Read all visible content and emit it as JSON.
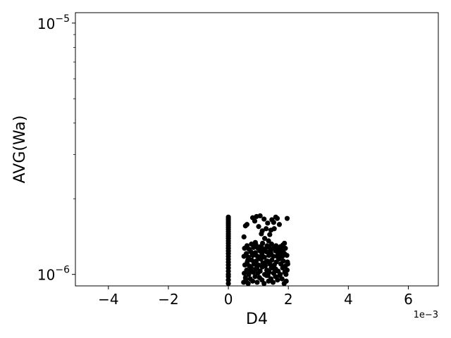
{
  "chart_data": {
    "type": "scatter",
    "title": "",
    "xlabel": "D4",
    "ylabel": "AVG(Wa)",
    "x_offset_label": "1e−3",
    "xlim": [
      -0.0051,
      0.007
    ],
    "ylim": [
      9e-07,
      1.1e-05
    ],
    "yscale": "log",
    "grid": false,
    "marker_color": "#000000",
    "x_ticks": [
      {
        "value": -0.004,
        "label": "−4"
      },
      {
        "value": -0.002,
        "label": "−2"
      },
      {
        "value": 0.0,
        "label": "0"
      },
      {
        "value": 0.002,
        "label": "2"
      },
      {
        "value": 0.004,
        "label": "4"
      },
      {
        "value": 0.006,
        "label": "6"
      }
    ],
    "y_ticks": [
      {
        "value": 1e-06,
        "base": "10",
        "exp": "−6"
      },
      {
        "value": 1e-05,
        "base": "10",
        "exp": "−5"
      }
    ],
    "y_minor_ticks": [
      2e-06,
      3e-06,
      4e-06,
      5e-06,
      6e-06,
      7e-06,
      8e-06,
      9e-06
    ],
    "points": [
      [
        0,
        9.2e-07
      ],
      [
        0,
        9.5e-07
      ],
      [
        0,
        9.8e-07
      ],
      [
        0,
        1e-06
      ],
      [
        0,
        1.03e-06
      ],
      [
        0,
        1.06e-06
      ],
      [
        0,
        1.09e-06
      ],
      [
        0,
        1.12e-06
      ],
      [
        0,
        1.15e-06
      ],
      [
        0,
        1.18e-06
      ],
      [
        0,
        1.21e-06
      ],
      [
        0,
        1.24e-06
      ],
      [
        0,
        1.27e-06
      ],
      [
        0,
        1.3e-06
      ],
      [
        0,
        1.33e-06
      ],
      [
        0,
        1.36e-06
      ],
      [
        0,
        1.39e-06
      ],
      [
        0,
        1.42e-06
      ],
      [
        0,
        1.45e-06
      ],
      [
        0,
        1.48e-06
      ],
      [
        0,
        1.51e-06
      ],
      [
        0,
        1.54e-06
      ],
      [
        0,
        1.57e-06
      ],
      [
        0,
        1.6e-06
      ],
      [
        0,
        1.63e-06
      ],
      [
        0,
        1.66e-06
      ],
      [
        0,
        1.69e-06
      ],
      [
        0.00052,
        1.41e-06
      ],
      [
        0.00057,
        1.56e-06
      ],
      [
        0.00062,
        1.58e-06
      ],
      [
        0.00081,
        1.68e-06
      ],
      [
        0.00088,
        1.63e-06
      ],
      [
        0.00094,
        1.7e-06
      ],
      [
        0.00101,
        1.55e-06
      ],
      [
        0.00106,
        1.71e-06
      ],
      [
        0.00113,
        1.49e-06
      ],
      [
        0.00119,
        1.66e-06
      ],
      [
        0.00126,
        1.52e-06
      ],
      [
        0.00131,
        1.6e-06
      ],
      [
        0.00138,
        1.44e-06
      ],
      [
        0.00145,
        1.65e-06
      ],
      [
        0.00151,
        1.61e-06
      ],
      [
        0.00158,
        1.69e-06
      ],
      [
        0.00163,
        1.67e-06
      ],
      [
        0.0017,
        1.58e-06
      ],
      [
        0.00196,
        1.67e-06
      ],
      [
        0.00121,
        1.39e-06
      ],
      [
        0.00134,
        1.36e-06
      ],
      [
        0.00142,
        1.5e-06
      ],
      [
        0.00187,
        1.33e-06
      ],
      [
        0.0009,
        1.34e-06
      ],
      [
        0.0011,
        1.45e-06
      ],
      [
        0.00153,
        1.52e-06
      ],
      [
        0.00051,
        9.3e-07
      ],
      [
        0.00058,
        9.5e-07
      ],
      [
        0.00066,
        9.2e-07
      ],
      [
        0.00073,
        9.6e-07
      ],
      [
        0.00081,
        9.4e-07
      ],
      [
        0.00089,
        9.8e-07
      ],
      [
        0.00096,
        9.3e-07
      ],
      [
        0.00104,
        9.7e-07
      ],
      [
        0.00112,
        9.5e-07
      ],
      [
        0.00119,
        9.2e-07
      ],
      [
        0.00127,
        9.9e-07
      ],
      [
        0.00134,
        9.4e-07
      ],
      [
        0.00142,
        9.6e-07
      ],
      [
        0.00149,
        9.3e-07
      ],
      [
        0.00157,
        9.8e-07
      ],
      [
        0.00164,
        9.5e-07
      ],
      [
        0.00171,
        9.9e-07
      ],
      [
        0.00179,
        9.6e-07
      ],
      [
        0.00186,
        9.2e-07
      ],
      [
        0.00193,
        9.4e-07
      ],
      [
        0.00053,
        1.01e-06
      ],
      [
        0.00061,
        1.04e-06
      ],
      [
        0.00068,
        1e-06
      ],
      [
        0.00076,
        1.06e-06
      ],
      [
        0.00083,
        1.02e-06
      ],
      [
        0.00091,
        1.05e-06
      ],
      [
        0.00098,
        1.01e-06
      ],
      [
        0.00106,
        1.03e-06
      ],
      [
        0.00113,
        1.07e-06
      ],
      [
        0.00121,
        1e-06
      ],
      [
        0.00128,
        1.04e-06
      ],
      [
        0.00136,
        1.02e-06
      ],
      [
        0.00143,
        1.06e-06
      ],
      [
        0.00151,
        1.01e-06
      ],
      [
        0.00158,
        1.05e-06
      ],
      [
        0.00166,
        1.03e-06
      ],
      [
        0.00173,
        1e-06
      ],
      [
        0.00181,
        1.06e-06
      ],
      [
        0.00188,
        1.02e-06
      ],
      [
        0.00196,
        1.04e-06
      ],
      [
        0.00055,
        1.09e-06
      ],
      [
        0.00063,
        1.12e-06
      ],
      [
        0.0007,
        1.08e-06
      ],
      [
        0.00078,
        1.14e-06
      ],
      [
        0.00085,
        1.1e-06
      ],
      [
        0.00093,
        1.13e-06
      ],
      [
        0.001,
        1.09e-06
      ],
      [
        0.00108,
        1.15e-06
      ],
      [
        0.00115,
        1.11e-06
      ],
      [
        0.00123,
        1.08e-06
      ],
      [
        0.0013,
        1.13e-06
      ],
      [
        0.00138,
        1.1e-06
      ],
      [
        0.00145,
        1.14e-06
      ],
      [
        0.00153,
        1.09e-06
      ],
      [
        0.0016,
        1.12e-06
      ],
      [
        0.00168,
        1.15e-06
      ],
      [
        0.00175,
        1.1e-06
      ],
      [
        0.00183,
        1.13e-06
      ],
      [
        0.0019,
        1.08e-06
      ],
      [
        0.00197,
        1.12e-06
      ],
      [
        0.00052,
        1.18e-06
      ],
      [
        0.0006,
        1.21e-06
      ],
      [
        0.00067,
        1.17e-06
      ],
      [
        0.00075,
        1.23e-06
      ],
      [
        0.00082,
        1.19e-06
      ],
      [
        0.0009,
        1.22e-06
      ],
      [
        0.00097,
        1.18e-06
      ],
      [
        0.00105,
        1.24e-06
      ],
      [
        0.00112,
        1.2e-06
      ],
      [
        0.0012,
        1.17e-06
      ],
      [
        0.00127,
        1.23e-06
      ],
      [
        0.00135,
        1.19e-06
      ],
      [
        0.00142,
        1.21e-06
      ],
      [
        0.0015,
        1.18e-06
      ],
      [
        0.00157,
        1.24e-06
      ],
      [
        0.00165,
        1.2e-06
      ],
      [
        0.00172,
        1.22e-06
      ],
      [
        0.0018,
        1.18e-06
      ],
      [
        0.00187,
        1.21e-06
      ],
      [
        0.00195,
        1.19e-06
      ],
      [
        0.00054,
        1.27e-06
      ],
      [
        0.00062,
        1.3e-06
      ],
      [
        0.00069,
        1.26e-06
      ],
      [
        0.00077,
        1.32e-06
      ],
      [
        0.00084,
        1.28e-06
      ],
      [
        0.00092,
        1.31e-06
      ],
      [
        0.00099,
        1.27e-06
      ],
      [
        0.00107,
        1.29e-06
      ],
      [
        0.00114,
        1.33e-06
      ],
      [
        0.00122,
        1.26e-06
      ],
      [
        0.00129,
        1.3e-06
      ],
      [
        0.00137,
        1.28e-06
      ],
      [
        0.00144,
        1.32e-06
      ],
      [
        0.00152,
        1.27e-06
      ],
      [
        0.00159,
        1.3e-06
      ],
      [
        0.00167,
        1.26e-06
      ],
      [
        0.00174,
        1.29e-06
      ],
      [
        0.00182,
        1.31e-06
      ],
      [
        0.0019,
        1.27e-06
      ],
      [
        0.00057,
        9.7e-07
      ],
      [
        0.00072,
        1.03e-06
      ],
      [
        0.00087,
        1.1e-06
      ],
      [
        0.00102,
        1.16e-06
      ],
      [
        0.00117,
        1.24e-06
      ],
      [
        0.00132,
        9.9e-07
      ],
      [
        0.00147,
        1.07e-06
      ],
      [
        0.00162,
        1.18e-06
      ],
      [
        0.00177,
        1.25e-06
      ],
      [
        0.00192,
        1e-06
      ],
      [
        0.00065,
        1.14e-06
      ],
      [
        0.0008,
        1.2e-06
      ],
      [
        0.00095,
        1.06e-06
      ],
      [
        0.0011,
        1.29e-06
      ],
      [
        0.00125,
        1.12e-06
      ],
      [
        0.0014,
        1.24e-06
      ],
      [
        0.00155,
        1.03e-06
      ],
      [
        0.0017,
        1.16e-06
      ],
      [
        0.00185,
        1.26e-06
      ],
      [
        0.00198,
        1.1e-06
      ]
    ]
  }
}
